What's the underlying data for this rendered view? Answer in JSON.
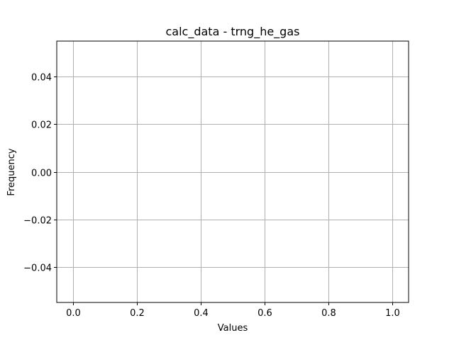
{
  "chart_data": {
    "type": "bar",
    "title": "calc_data - trng_he_gas",
    "xlabel": "Values",
    "ylabel": "Frequency",
    "xlim": [
      -0.05,
      1.05
    ],
    "ylim": [
      -0.055,
      0.055
    ],
    "x_ticks": [
      {
        "value": 0.0,
        "label": "0.0"
      },
      {
        "value": 0.2,
        "label": "0.2"
      },
      {
        "value": 0.4,
        "label": "0.4"
      },
      {
        "value": 0.6,
        "label": "0.6"
      },
      {
        "value": 0.8,
        "label": "0.8"
      },
      {
        "value": 1.0,
        "label": "1.0"
      }
    ],
    "y_ticks": [
      {
        "value": 0.04,
        "label": "0.04"
      },
      {
        "value": 0.02,
        "label": "0.02"
      },
      {
        "value": 0.0,
        "label": "0.00"
      },
      {
        "value": -0.02,
        "label": "−0.02"
      },
      {
        "value": -0.04,
        "label": "−0.04"
      }
    ],
    "grid": true,
    "values": [],
    "grid_color": "#b0b0b0",
    "axis_color": "#000000",
    "background": "#ffffff"
  }
}
